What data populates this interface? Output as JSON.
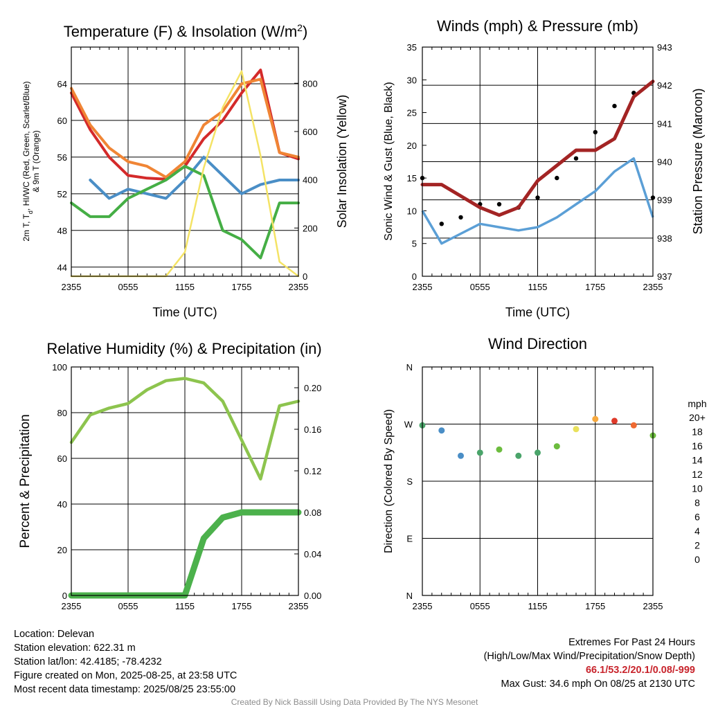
{
  "chart_data": [
    {
      "type": "line",
      "title": "Temperature (F) & Insolation (W/m",
      "title_sup": "2",
      "title_end": ")",
      "xlabel": "Time (UTC)",
      "ylabel": "2m T, T",
      "ylabel_sub": "d",
      "ylabel_rest": ", HI/WC (Red, Green, Scarlet/Blue)",
      "ylabel2": "& 9m T (Orange)",
      "y2label": "Solar Insolation (Yellow)",
      "xticks": [
        "2355",
        "0555",
        "1155",
        "1755",
        "2355"
      ],
      "x": [
        0,
        2,
        4,
        6,
        8,
        10,
        12,
        14,
        16,
        18,
        20,
        22,
        24
      ],
      "ylim": [
        43,
        68
      ],
      "yticks": [
        44,
        48,
        52,
        56,
        60,
        64
      ],
      "y2lim": [
        0,
        950
      ],
      "y2ticks": [
        0,
        200,
        400,
        600,
        800
      ],
      "series": [
        {
          "color": "#d42a2a",
          "values": [
            63,
            59,
            56,
            54,
            53.7,
            53.6,
            55,
            58,
            60,
            63,
            65.5,
            56.5,
            55.8
          ]
        },
        {
          "color": "#4a8ec6",
          "values": [
            null,
            53.5,
            51.5,
            52.5,
            52,
            51.5,
            53.5,
            56,
            54,
            52,
            53,
            53.5,
            53.5
          ]
        },
        {
          "color": "#f08535",
          "values": [
            63.5,
            59.5,
            57,
            55.5,
            55,
            53.8,
            55.5,
            59.5,
            61,
            64,
            64.5,
            56.5,
            56
          ]
        },
        {
          "color": "#45ae45",
          "values": [
            51,
            49.5,
            49.5,
            51.5,
            52.5,
            53.5,
            55,
            54,
            48,
            47,
            45,
            51,
            51
          ]
        },
        {
          "color": "#f4e365",
          "axis": "y2",
          "values": [
            0,
            0,
            0,
            0,
            0,
            0,
            100,
            450,
            700,
            850,
            500,
            60,
            0
          ]
        }
      ]
    },
    {
      "type": "scatter",
      "title": "Winds (mph) & Pressure (mb)",
      "xlabel": "Time (UTC)",
      "ylabel": "Sonic Wind & Gust (Blue, Black)",
      "y2label": "Station Pressure (Maroon)",
      "xticks": [
        "2355",
        "0555",
        "1155",
        "1755",
        "2355"
      ],
      "x": [
        0,
        2,
        4,
        6,
        8,
        10,
        12,
        14,
        16,
        18,
        20,
        22,
        24
      ],
      "ylim": [
        0,
        35
      ],
      "yticks": [
        0,
        5,
        10,
        15,
        20,
        25,
        30,
        35
      ],
      "y2lim": [
        937,
        943
      ],
      "y2ticks": [
        937,
        938,
        939,
        940,
        941,
        942,
        943
      ],
      "series": [
        {
          "color": "#5b9fd6",
          "values": [
            10,
            5,
            6.5,
            8,
            7.5,
            7,
            7.5,
            9,
            11,
            13,
            16,
            18,
            9
          ]
        },
        {
          "color": "#000000",
          "values": [
            15,
            8,
            9,
            11,
            11,
            10.5,
            12,
            15,
            18,
            22,
            26,
            28,
            12
          ]
        },
        {
          "color": "#a32424",
          "axis": "y2",
          "values": [
            939.4,
            939.4,
            939.1,
            938.8,
            938.6,
            938.8,
            939.5,
            939.9,
            940.3,
            940.3,
            940.6,
            941.7,
            942.1
          ]
        }
      ]
    },
    {
      "type": "line",
      "title": "Relative Humidity (%) & Precipitation (in)",
      "ylabel": "Percent & Precipitation",
      "xticks": [
        "2355",
        "0555",
        "1155",
        "1755",
        "2355"
      ],
      "x": [
        0,
        2,
        4,
        6,
        8,
        10,
        12,
        14,
        16,
        18,
        20,
        22,
        24
      ],
      "ylim": [
        0,
        100
      ],
      "yticks": [
        0,
        20,
        40,
        60,
        80,
        100
      ],
      "y2lim": [
        0,
        0.22
      ],
      "y2ticks": [
        "0.00",
        "0.04",
        "0.08",
        "0.12",
        "0.16",
        "0.20"
      ],
      "series": [
        {
          "color": "#8dc44e",
          "values": [
            67,
            79,
            82,
            84,
            90,
            94,
            95,
            93,
            85,
            68,
            51,
            83,
            85
          ]
        },
        {
          "color": "#4cb14c",
          "axis": "y2",
          "values": [
            0,
            0,
            0,
            0,
            0,
            0,
            0,
            0.055,
            0.075,
            0.08,
            0.08,
            0.08,
            0.08
          ]
        }
      ]
    },
    {
      "type": "scatter",
      "title": "Wind Direction",
      "ylabel": "Direction (Colored By Speed)",
      "xticks": [
        "2355",
        "0555",
        "1155",
        "1755",
        "2355"
      ],
      "x": [
        0,
        2,
        4,
        6,
        8,
        10,
        12,
        14,
        16,
        18,
        20,
        22,
        24
      ],
      "yticks": [
        "N",
        "E",
        "S",
        "W",
        "N"
      ],
      "ylim": [
        0,
        360
      ],
      "values": [
        268,
        260,
        220,
        225,
        230,
        220,
        225,
        235,
        262,
        278,
        275,
        268,
        252
      ],
      "speeds": [
        6,
        4,
        5,
        7,
        8,
        7,
        7,
        9,
        11,
        12,
        16,
        15,
        9
      ],
      "colorbar": {
        "label": "mph",
        "labels": [
          "0",
          "2",
          "4",
          "6",
          "8",
          "10",
          "12",
          "14",
          "16",
          "18",
          "20+"
        ],
        "colors": [
          "#bfe6f8",
          "#84bfe7",
          "#4a8ec6",
          "#4aa46a",
          "#6cbc3e",
          "#e9e15c",
          "#f6a83d",
          "#ef6a32",
          "#df3a2a",
          "#bf2426",
          "#951d1f"
        ]
      }
    }
  ],
  "footer": {
    "location": "Location: Delevan",
    "elevation": "Station elevation: 622.31 m",
    "latlon": "Station lat/lon: 42.4185; -78.4232",
    "created": "Figure created on Mon, 2025-08-25, at 23:58 UTC",
    "recent": "Most recent data timestamp: 2025/08/25 23:55:00",
    "extremes_title": "Extremes For Past 24 Hours",
    "extremes_sub": "(High/Low/Max Wind/Precipitation/Snow Depth)",
    "extremes_values": "66.1/53.2/20.1/0.08/-999",
    "max_gust": "Max Gust: 34.6 mph On 08/25 at 2130 UTC",
    "credit": "Created By Nick Bassill Using Data Provided By The NYS Mesonet"
  }
}
